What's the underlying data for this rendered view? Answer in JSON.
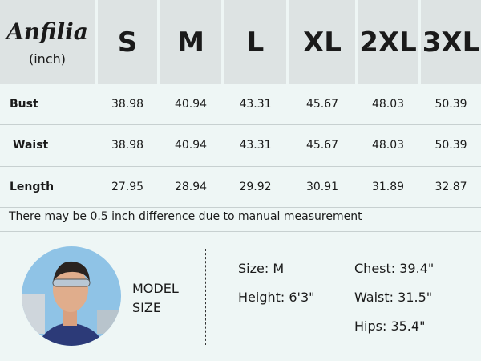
{
  "header": {
    "brand": "Anfilia",
    "unit": "(inch)",
    "sizes": [
      "S",
      "M",
      "L",
      "XL",
      "2XL",
      "3XL"
    ]
  },
  "table": {
    "rows": [
      {
        "label": "Bust",
        "values": [
          "38.98",
          "40.94",
          "43.31",
          "45.67",
          "48.03",
          "50.39"
        ]
      },
      {
        "label": "Waist",
        "values": [
          "38.98",
          "40.94",
          "43.31",
          "45.67",
          "48.03",
          "50.39"
        ]
      },
      {
        "label": "Length",
        "values": [
          "27.95",
          "28.94",
          "29.92",
          "30.91",
          "31.89",
          "32.87"
        ]
      }
    ]
  },
  "note": "There may be 0.5 inch difference due to manual measurement",
  "model": {
    "label": [
      "MODEL",
      "SIZE"
    ],
    "left": [
      "Size: M",
      "Height: 6'3\""
    ],
    "right": [
      "Chest: 39.4\"",
      "Waist: 31.5\"",
      "Hips: 35.4\""
    ]
  }
}
